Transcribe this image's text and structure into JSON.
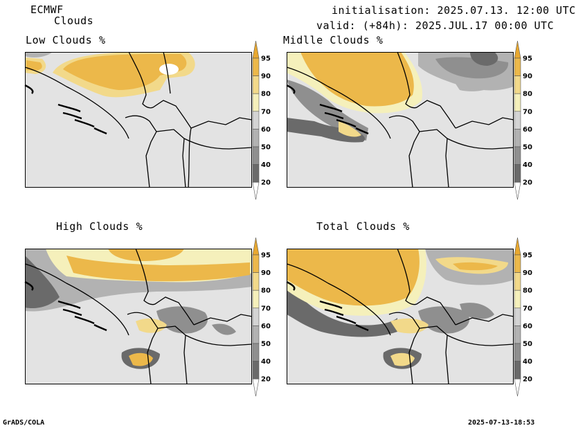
{
  "header": {
    "model": "ECMWF",
    "product": "Clouds",
    "initialisation": "initialisation: 2025.07.13. 12:00 UTC",
    "valid": "valid: (+84h): 2025.JUL.17 00:00 UTC"
  },
  "panels": [
    {
      "title": "Low Clouds %"
    },
    {
      "title": "Midlle Clouds %"
    },
    {
      "title": "High Clouds %"
    },
    {
      "title": "Total Clouds %"
    }
  ],
  "colorbar": {
    "levels": [
      "20",
      "40",
      "50",
      "60",
      "70",
      "80",
      "90",
      "95"
    ],
    "colors": [
      "#ffffff",
      "#6a6a6a",
      "#8f8f8f",
      "#b2b2b2",
      "#d4d4d4",
      "#f5f0bb",
      "#f2d98a",
      "#ecb84a",
      "#e8a830"
    ]
  },
  "footer": {
    "left": "GrADS/COLA",
    "right": "2025-07-13-18:53"
  }
}
